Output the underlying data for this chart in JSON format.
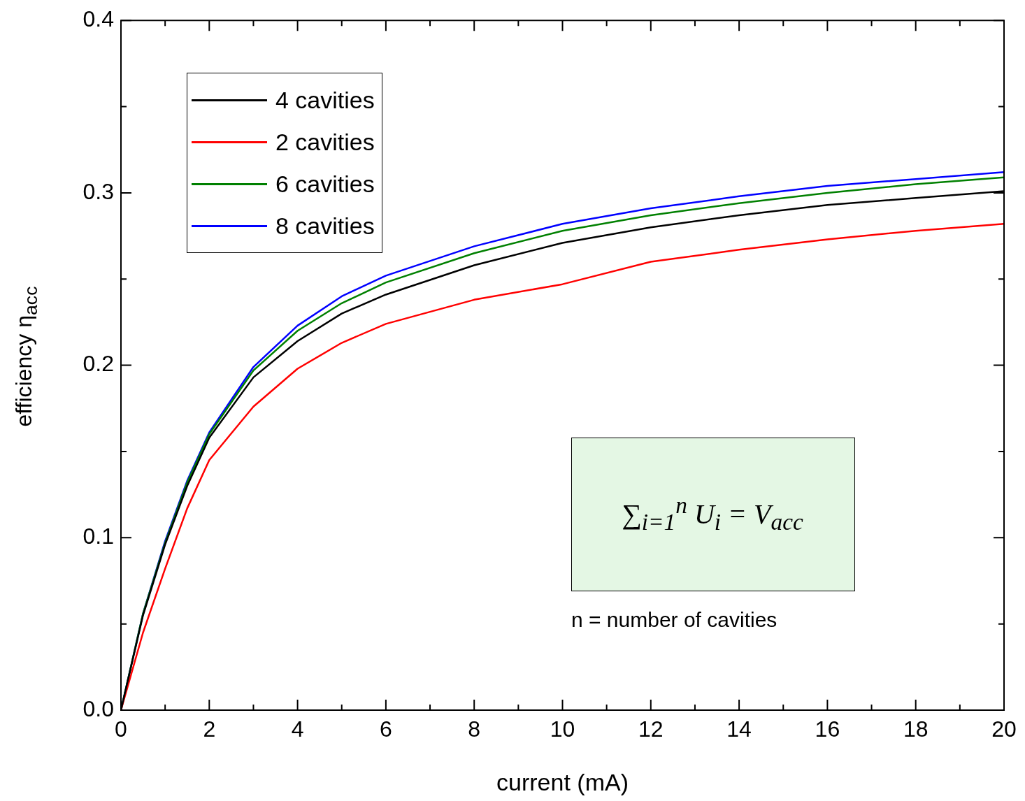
{
  "chart_data": {
    "type": "line",
    "xlabel": "current (mA)",
    "ylabel": "efficiency η$_{acc}$",
    "xlim": [
      0,
      20
    ],
    "ylim": [
      0,
      0.4
    ],
    "xticks": [
      0,
      {
        "value": 1,
        "label": null
      },
      2,
      {
        "value": 3,
        "label": null
      },
      4,
      {
        "value": 5,
        "label": null
      },
      6,
      {
        "value": 7,
        "label": null
      },
      8,
      {
        "value": 9,
        "label": null
      },
      10,
      {
        "value": 11,
        "label": null
      },
      12,
      {
        "value": 13,
        "label": null
      },
      14,
      {
        "value": 15,
        "label": null
      },
      16,
      {
        "value": 17,
        "label": null
      },
      18,
      {
        "value": 19,
        "label": null
      },
      20
    ],
    "yticks": [
      {
        "value": 0,
        "label": "0.0"
      },
      {
        "value": 0.05,
        "label": null
      },
      0.1,
      {
        "value": 0.15,
        "label": null
      },
      0.2,
      {
        "value": 0.25,
        "label": null
      },
      0.3,
      {
        "value": 0.35,
        "label": null
      },
      0.4
    ],
    "x": [
      0,
      0.5,
      1,
      1.5,
      2,
      3,
      4,
      5,
      6,
      8,
      10,
      12,
      14,
      16,
      18,
      20
    ],
    "series": [
      {
        "name": "4 cavities",
        "color": "#000000",
        "values": [
          0,
          0.055,
          0.096,
          0.13,
          0.158,
          0.193,
          0.214,
          0.23,
          0.241,
          0.258,
          0.271,
          0.28,
          0.287,
          0.293,
          0.297,
          0.301
        ]
      },
      {
        "name": "2 cavities",
        "color": "#ff0000",
        "values": [
          0,
          0.045,
          0.082,
          0.117,
          0.145,
          0.176,
          0.198,
          0.213,
          0.224,
          0.238,
          0.247,
          0.26,
          0.267,
          0.273,
          0.278,
          0.282
        ]
      },
      {
        "name": "6 cavities",
        "color": "#008000",
        "values": [
          0,
          0.056,
          0.097,
          0.132,
          0.16,
          0.197,
          0.22,
          0.236,
          0.248,
          0.265,
          0.278,
          0.287,
          0.294,
          0.3,
          0.305,
          0.309
        ]
      },
      {
        "name": "8 cavities",
        "color": "#0000ff",
        "values": [
          0,
          0.056,
          0.098,
          0.133,
          0.161,
          0.199,
          0.223,
          0.24,
          0.252,
          0.269,
          0.282,
          0.291,
          0.298,
          0.304,
          0.308,
          0.312
        ]
      }
    ],
    "legend": "top left",
    "marker": "none",
    "line_style": "solid",
    "grid": false,
    "annotations": [
      "∑$_{i=1}$$^{n}$ U$_{i}$ = V$_{acc}$",
      "n = number of cavities"
    ]
  }
}
